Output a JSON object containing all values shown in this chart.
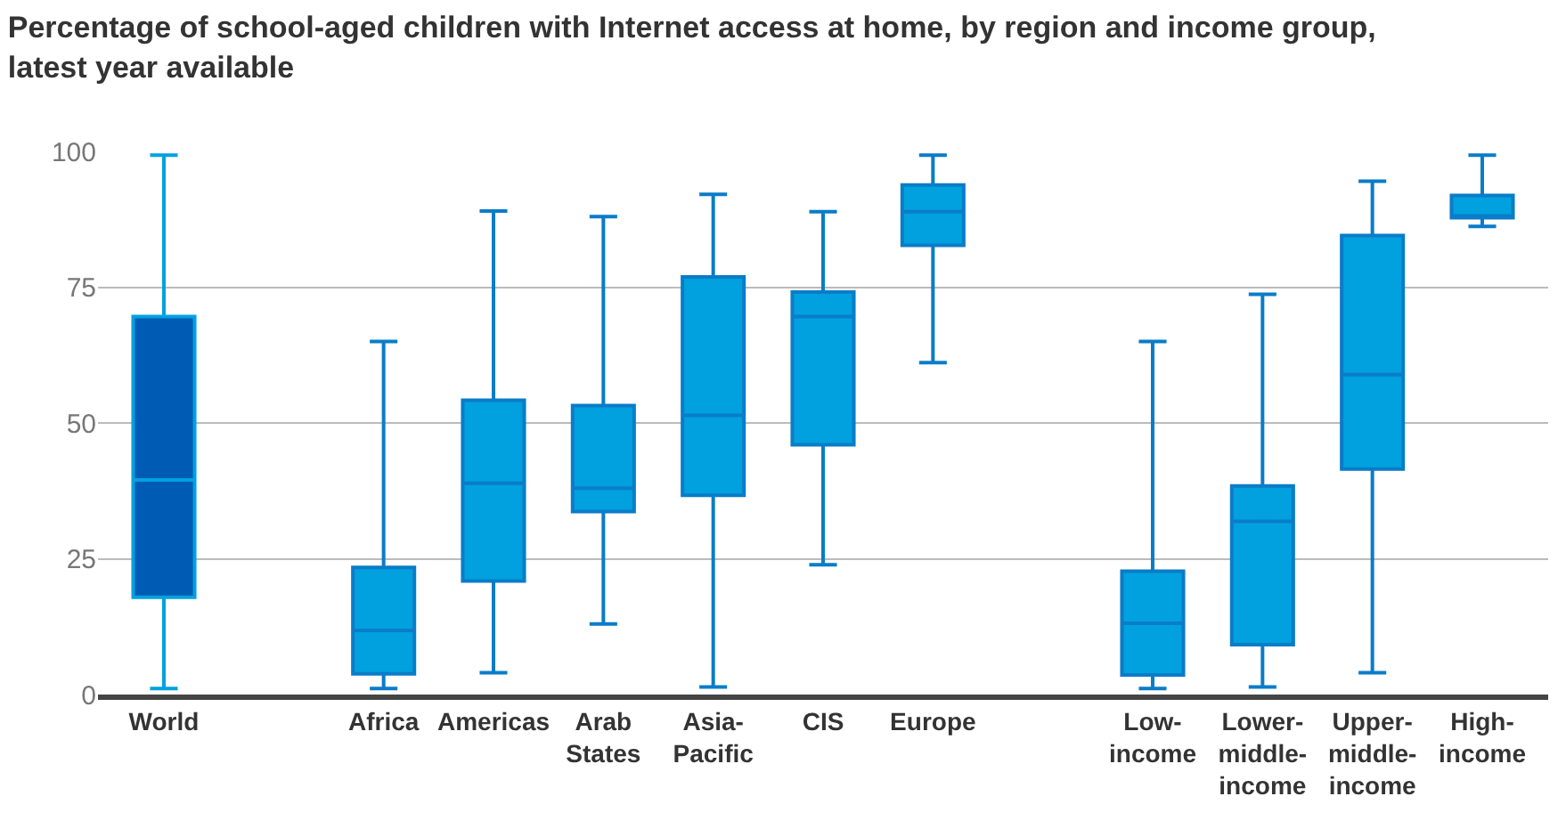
{
  "chart_data": {
    "type": "box",
    "title": "Percentage of school-aged children with Internet access at home, by region and income group, latest year available",
    "categories": [
      "World",
      null,
      "Africa",
      "Americas",
      "Arab States",
      "Asia-Pacific",
      "CIS",
      "Europe",
      null,
      "Low-income",
      "Lower-middle-income",
      "Upper-middle-income",
      "High-income"
    ],
    "colors": [
      "#005bb5",
      null,
      "#00a1de",
      "#00a1de",
      "#00a1de",
      "#00a1de",
      "#00a1de",
      "#00a1de",
      null,
      "#00a1de",
      "#00a1de",
      "#00a1de",
      "#00a1de"
    ],
    "boxes": [
      {
        "low": 1.1,
        "q1": 17.9,
        "median": 39.5,
        "q3": 69.6,
        "high": 99.3
      },
      null,
      {
        "low": 1.1,
        "q1": 3.8,
        "median": 11.8,
        "q3": 23.4,
        "high": 65
      },
      {
        "low": 4.0,
        "q1": 20.9,
        "median": 38.9,
        "q3": 54.2,
        "high": 89
      },
      {
        "low": 13,
        "q1": 33.7,
        "median": 38,
        "q3": 53.2,
        "high": 88
      },
      {
        "low": 1.4,
        "q1": 36.7,
        "median": 51.4,
        "q3": 76.9,
        "high": 92.1
      },
      {
        "low": 23.9,
        "q1": 46,
        "median": 69.6,
        "q3": 74.1,
        "high": 88.9
      },
      {
        "low": 61.1,
        "q1": 82.7,
        "median": 88.9,
        "q3": 93.8,
        "high": 99.3
      },
      null,
      {
        "low": 1.1,
        "q1": 3.6,
        "median": 13.1,
        "q3": 22.7,
        "high": 65
      },
      {
        "low": 1.4,
        "q1": 9.2,
        "median": 31.9,
        "q3": 38.4,
        "high": 73.7
      },
      {
        "low": 4.0,
        "q1": 41.5,
        "median": 58.9,
        "q3": 84.5,
        "high": 94.5
      },
      {
        "low": 86.2,
        "q1": 87.8,
        "median": 88,
        "q3": 91.9,
        "high": 99.3
      }
    ],
    "ylim": [
      0,
      100
    ],
    "yticks": [
      0,
      25,
      50,
      75,
      100
    ],
    "grid": "y"
  }
}
